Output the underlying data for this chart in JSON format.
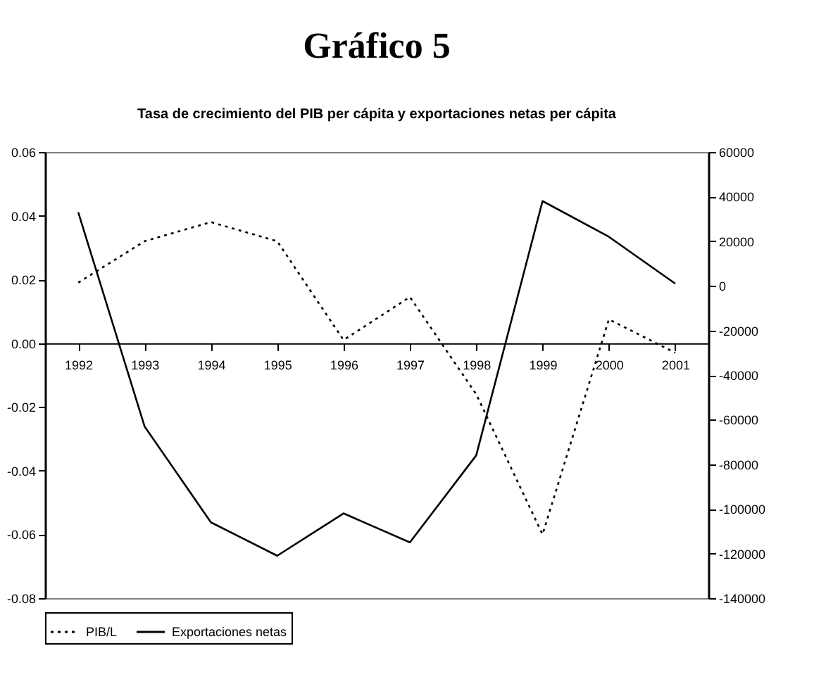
{
  "chart_data": {
    "type": "line",
    "title": "Gráfico 5",
    "subtitle": "Tasa de crecimiento del PIB per cápita y exportaciones netas per cápita",
    "categories": [
      "1992",
      "1993",
      "1994",
      "1995",
      "1996",
      "1997",
      "1998",
      "1999",
      "2000",
      "2001"
    ],
    "series": [
      {
        "name": "PIB/L",
        "color": "#000000",
        "line_style": "dotted",
        "values": [
          0.019,
          0.032,
          0.038,
          0.032,
          0.001,
          0.0145,
          -0.016,
          -0.06,
          0.0075,
          -0.003
        ]
      },
      {
        "name": "Exportaciones netas",
        "color": "#000000",
        "line_style": "solid",
        "axis": "y2",
        "values": [
          33000,
          -63000,
          -106000,
          -121000,
          -102000,
          -115000,
          -76000,
          38000,
          22000,
          1000
        ]
      }
    ],
    "ylim": [
      -0.08,
      0.06
    ],
    "yticks": [
      {
        "value": -0.08,
        "label": "-0.08"
      },
      {
        "value": -0.06,
        "label": "-0.06"
      },
      {
        "value": -0.04,
        "label": "-0.04"
      },
      {
        "value": -0.02,
        "label": "-0.02"
      },
      {
        "value": 0,
        "label": "0.00"
      },
      {
        "value": 0.02,
        "label": "0.02"
      },
      {
        "value": 0.04,
        "label": "0.04"
      },
      {
        "value": 0.06,
        "label": "0.06"
      }
    ],
    "y2lim": [
      -140000,
      60000
    ],
    "y2ticks": [
      -140000,
      -120000,
      -100000,
      -80000,
      -60000,
      -40000,
      -20000,
      0,
      20000,
      40000,
      60000
    ],
    "grid": false,
    "legend": "bottom",
    "marker": "none"
  }
}
